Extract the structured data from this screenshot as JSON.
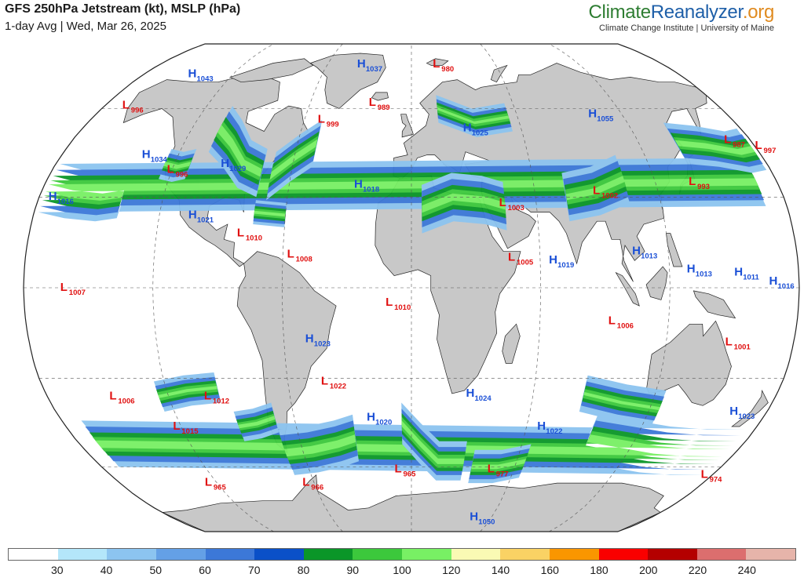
{
  "header": {
    "title": "GFS 250hPa Jetstream (kt), MSLP (hPa)",
    "subtitle": "1-day Avg | Wed, Mar 26, 2025"
  },
  "brand": {
    "part1": "Climate",
    "part2": "Reanalyzer",
    "part3": ".org",
    "tagline": "Climate Change Institute | University of Maine"
  },
  "legend": {
    "colors": [
      "#ffffff",
      "#b4e6fa",
      "#8cc4f0",
      "#64a0e6",
      "#3c78d8",
      "#0a50c8",
      "#0a9628",
      "#3cc83c",
      "#78f064",
      "#fafab4",
      "#fad264",
      "#fa9600",
      "#fa0000",
      "#b40000",
      "#dc6e6e",
      "#e6b4aa"
    ],
    "labels": [
      "30",
      "40",
      "50",
      "60",
      "70",
      "80",
      "90",
      "100",
      "120",
      "140",
      "160",
      "180",
      "200",
      "220",
      "240"
    ]
  },
  "pressure_systems": [
    {
      "t": "H",
      "v": "1043",
      "lon": -148,
      "lat": 72
    },
    {
      "t": "H",
      "v": "1037",
      "lon": -38,
      "lat": 76
    },
    {
      "t": "L",
      "v": "980",
      "lon": 15,
      "lat": 76
    },
    {
      "t": "L",
      "v": "996",
      "lon": -168,
      "lat": 60
    },
    {
      "t": "L",
      "v": "999",
      "lon": -52,
      "lat": 55
    },
    {
      "t": "L",
      "v": "989",
      "lon": -25,
      "lat": 61
    },
    {
      "t": "H",
      "v": "1055",
      "lon": 100,
      "lat": 57
    },
    {
      "t": "H",
      "v": "1025",
      "lon": 28,
      "lat": 52
    },
    {
      "t": "L",
      "v": "987",
      "lon": 165,
      "lat": 48
    },
    {
      "t": "L",
      "v": "997",
      "lon": 179,
      "lat": 46
    },
    {
      "t": "H",
      "v": "1034",
      "lon": -138,
      "lat": 43
    },
    {
      "t": "L",
      "v": "996",
      "lon": -122,
      "lat": 38
    },
    {
      "t": "H",
      "v": "1029",
      "lon": -96,
      "lat": 40
    },
    {
      "t": "H",
      "v": "1018",
      "lon": -28,
      "lat": 33
    },
    {
      "t": "L",
      "v": "993",
      "lon": 136,
      "lat": 34
    },
    {
      "t": "H",
      "v": "1016",
      "lon": -175,
      "lat": 29
    },
    {
      "t": "L",
      "v": "1002",
      "lon": 88,
      "lat": 31
    },
    {
      "t": "L",
      "v": "1003",
      "lon": 42,
      "lat": 27
    },
    {
      "t": "H",
      "v": "1021",
      "lon": -106,
      "lat": 23
    },
    {
      "t": "L",
      "v": "1010",
      "lon": -82,
      "lat": 17
    },
    {
      "t": "L",
      "v": "1008",
      "lon": -58,
      "lat": 10
    },
    {
      "t": "H",
      "v": "1013",
      "lon": 128,
      "lat": 5
    },
    {
      "t": "H",
      "v": "1013",
      "lon": 103,
      "lat": 11
    },
    {
      "t": "L",
      "v": "1005",
      "lon": 45,
      "lat": 9
    },
    {
      "t": "H",
      "v": "1019",
      "lon": 64,
      "lat": 8
    },
    {
      "t": "H",
      "v": "1011",
      "lon": 150,
      "lat": 4
    },
    {
      "t": "H",
      "v": "1016",
      "lon": 166,
      "lat": 1
    },
    {
      "t": "L",
      "v": "1007",
      "lon": -163,
      "lat": -1
    },
    {
      "t": "L",
      "v": "1010",
      "lon": -12,
      "lat": -6
    },
    {
      "t": "L",
      "v": "1006",
      "lon": 92,
      "lat": -12
    },
    {
      "t": "L",
      "v": "1001",
      "lon": 148,
      "lat": -19
    },
    {
      "t": "H",
      "v": "1023",
      "lon": -50,
      "lat": -18
    },
    {
      "t": "L",
      "v": "1022",
      "lon": -44,
      "lat": -32
    },
    {
      "t": "L",
      "v": "1006",
      "lon": -150,
      "lat": -37
    },
    {
      "t": "L",
      "v": "1012",
      "lon": -103,
      "lat": -37
    },
    {
      "t": "H",
      "v": "1024",
      "lon": 27,
      "lat": -36
    },
    {
      "t": "H",
      "v": "1023",
      "lon": 162,
      "lat": -42
    },
    {
      "t": "H",
      "v": "1020",
      "lon": -23,
      "lat": -44
    },
    {
      "t": "L",
      "v": "1015",
      "lon": -125,
      "lat": -47
    },
    {
      "t": "H",
      "v": "1022",
      "lon": 66,
      "lat": -47
    },
    {
      "t": "L",
      "v": "965",
      "lon": -10,
      "lat": -62
    },
    {
      "t": "L",
      "v": "977",
      "lon": 45,
      "lat": -62
    },
    {
      "t": "L",
      "v": "966",
      "lon": -68,
      "lat": -67
    },
    {
      "t": "L",
      "v": "965",
      "lon": -129,
      "lat": -67
    },
    {
      "t": "L",
      "v": "974",
      "lon": 175,
      "lat": -64
    },
    {
      "t": "H",
      "v": "1050",
      "lon": 45,
      "lat": -82
    }
  ]
}
